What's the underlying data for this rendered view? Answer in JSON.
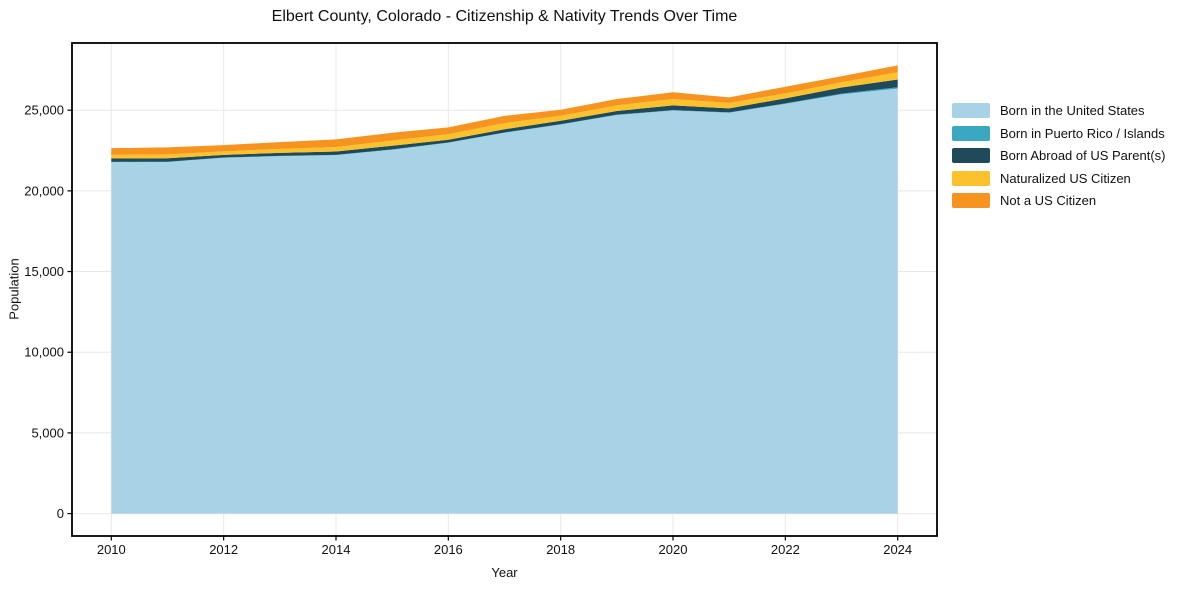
{
  "page": {
    "background": "#ffffff"
  },
  "chart_data": {
    "type": "area",
    "stacked": true,
    "title": "Elbert County, Colorado - Citizenship & Nativity Trends Over Time",
    "xlabel": "Year",
    "ylabel": "Population",
    "x": [
      2010,
      2011,
      2012,
      2013,
      2014,
      2015,
      2016,
      2017,
      2018,
      2019,
      2020,
      2021,
      2022,
      2023,
      2024
    ],
    "series": [
      {
        "name": "Born in the United States",
        "color": "#a8d3e6",
        "values": [
          21780,
          21790,
          22050,
          22150,
          22215,
          22550,
          22980,
          23600,
          24110,
          24700,
          24980,
          24840,
          25395,
          25980,
          26340
        ]
      },
      {
        "name": "Born in Puerto Rico / Islands",
        "color": "#3ba7c1",
        "values": [
          18,
          18,
          18,
          18,
          18,
          18,
          18,
          20,
          22,
          22,
          25,
          25,
          30,
          45,
          80
        ]
      },
      {
        "name": "Born Abroad of US Parent(s)",
        "color": "#1f4a5c",
        "values": [
          205,
          215,
          165,
          185,
          205,
          230,
          170,
          200,
          210,
          230,
          290,
          250,
          310,
          380,
          480
        ]
      },
      {
        "name": "Naturalized US Citizen",
        "color": "#fcc22d",
        "values": [
          225,
          240,
          215,
          250,
          280,
          320,
          350,
          380,
          310,
          350,
          400,
          330,
          310,
          330,
          450
        ]
      },
      {
        "name": "Not a US Citizen",
        "color": "#f7941f",
        "values": [
          420,
          430,
          390,
          420,
          470,
          480,
          420,
          450,
          375,
          390,
          420,
          350,
          405,
          365,
          425
        ]
      }
    ],
    "xticks": [
      2010,
      2012,
      2014,
      2016,
      2018,
      2020,
      2022,
      2024
    ],
    "yticks": [
      0,
      5000,
      10000,
      15000,
      20000,
      25000
    ],
    "ytick_labels": [
      "0",
      "5,000",
      "10,000",
      "15,000",
      "20,000",
      "25,000"
    ],
    "xlim": [
      2009.3,
      2024.7
    ],
    "ylim": [
      -1389,
      29164
    ],
    "grid": true,
    "grid_color": "#e8e8e8",
    "frame_color": "#000000",
    "tick_color": "#111111",
    "legend_position": "right-outside"
  }
}
